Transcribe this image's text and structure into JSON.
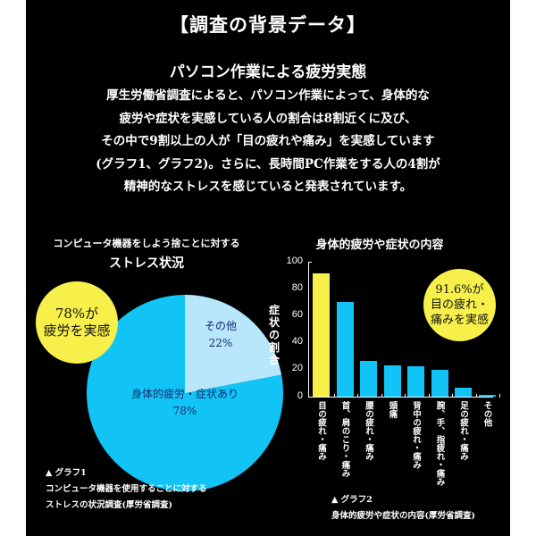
{
  "header": {
    "title": "【調査の背景データ】",
    "subtitle": "パソコン作業による疲労実態",
    "body_lines": [
      "厚生労働省調査によると、パソコン作業によって、身体的な",
      "疲労や症状を実感している人の割合は8割近くに及び、",
      "その中で9割以上の人が「目の疲れや痛み」を実感しています",
      "(グラフ1、グラフ2)。さらに、長時間PC作業をする人の4割が",
      "精神的なストレスを感じていると発表されています。"
    ]
  },
  "graph1": {
    "title_line1": "コンピュータ機器をしよう捨ことに対する",
    "title_line2": "ストレス状況",
    "callout_line1": "78%が",
    "callout_line2": "疲労を実感",
    "slice_other_label": "その他",
    "slice_other_value": "22%",
    "slice_main_label": "身体的疲労・症状あり",
    "slice_main_value": "78%",
    "caption_marker": "▲ グラフ1",
    "caption_line1": "コンピュータ機器を使用することに対する",
    "caption_line2": "ストレスの状況調査(厚労省調査)"
  },
  "graph2": {
    "title": "身体的疲労や症状の内容",
    "ylabel": "症状の割合",
    "yticks": [
      "100",
      "80",
      "60",
      "40",
      "20",
      "0"
    ],
    "callout_line1": "91.6%が",
    "callout_line2": "目の疲れ・",
    "callout_line3": "痛みを実感",
    "categories": [
      "目の疲れ・痛み",
      "首、肩のこり・痛み",
      "腰の疲れ・痛み",
      "頭痛",
      "背中の疲れ・痛み",
      "腕、手、指疲れ・痛み",
      "足の疲れ・痛み",
      "その他"
    ],
    "caption_marker": "▲ グラフ2",
    "caption_line1": "身体的疲労や症状の内容(厚労省調査)"
  },
  "colors": {
    "background": "#000000",
    "margin": "#ffffff",
    "highlight_yellow": "#f7f04a",
    "bar_blue": "#12c3f5",
    "pie_main": "#12c3f5",
    "pie_other": "#b8e6fb"
  },
  "chart_data": [
    {
      "type": "pie",
      "title": "コンピュータ機器をしよう捨ことに対する ストレス状況",
      "categories": [
        "身体的疲労・症状あり",
        "その他"
      ],
      "values": [
        78,
        22
      ],
      "annotations": [
        "78%が疲労を実感"
      ],
      "legend_position": "none"
    },
    {
      "type": "bar",
      "title": "身体的疲労や症状の内容",
      "xlabel": "",
      "ylabel": "症状の割合",
      "ylim": [
        0,
        100
      ],
      "yticks": [
        0,
        20,
        40,
        60,
        80,
        100
      ],
      "categories": [
        "目の疲れ・痛み",
        "首、肩のこり・痛み",
        "腰の疲れ・痛み",
        "頭痛",
        "背中の疲れ・痛み",
        "腕、手、指疲れ・痛み",
        "足の疲れ・痛み",
        "その他"
      ],
      "values": [
        91.6,
        70,
        26.5,
        23,
        22.5,
        20,
        6.5,
        1.5
      ],
      "annotations": [
        "91.6%が目の疲れ・痛みを実感"
      ],
      "grid": false
    }
  ]
}
